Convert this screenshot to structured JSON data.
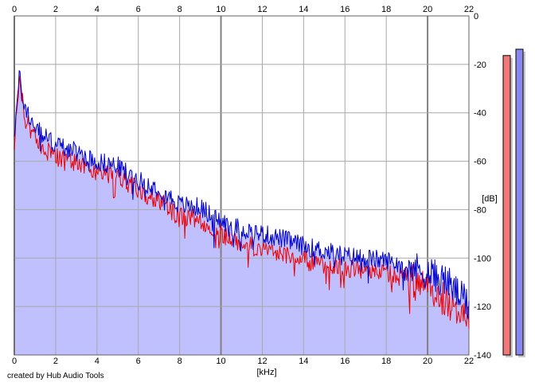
{
  "credit": "created by Hub Audio Tools",
  "chart_data": {
    "type": "area",
    "xlabel": "[kHz]",
    "ylabel": "[dB]",
    "xlim": [
      0,
      22
    ],
    "ylim": [
      -140,
      0
    ],
    "x_ticks": [
      0,
      2,
      4,
      6,
      8,
      10,
      12,
      14,
      16,
      18,
      20,
      22
    ],
    "y_ticks": [
      0,
      -20,
      -40,
      -60,
      -80,
      -100,
      -120,
      -140
    ],
    "y_tick_labels": [
      "0",
      "-20",
      "-40",
      "-60",
      "-80",
      "-100",
      "-120",
      "-140"
    ],
    "grid": true,
    "fill_color": "#c0c0ff",
    "series": [
      {
        "color": "#0000cc",
        "x": [
          0,
          0.25,
          0.5,
          1,
          1.5,
          2,
          3,
          4,
          5,
          6,
          7,
          8,
          9,
          10,
          11,
          12,
          13,
          14,
          15,
          16,
          17,
          18,
          19,
          20,
          21,
          22
        ],
        "values": [
          -48,
          -25,
          -38,
          -46,
          -50,
          -53,
          -56,
          -60,
          -62,
          -68,
          -71,
          -78,
          -79,
          -85,
          -88,
          -90,
          -92,
          -95,
          -97,
          -99,
          -100,
          -101,
          -103,
          -106,
          -110,
          -120
        ]
      },
      {
        "color": "#ee0000",
        "x": [
          0,
          0.25,
          0.5,
          1,
          1.5,
          2,
          3,
          4,
          5,
          6,
          7,
          8,
          9,
          10,
          11,
          12,
          13,
          14,
          15,
          16,
          17,
          18,
          19,
          20,
          21,
          22
        ],
        "values": [
          -52,
          -27,
          -42,
          -50,
          -55,
          -58,
          -61,
          -64,
          -66,
          -72,
          -76,
          -83,
          -84,
          -90,
          -94,
          -96,
          -98,
          -101,
          -103,
          -104,
          -105,
          -106,
          -108,
          -113,
          -118,
          -126
        ]
      }
    ]
  },
  "level_meters": [
    {
      "color": "#f07878",
      "level": 0.95
    },
    {
      "color": "#8888ee",
      "level": 0.97
    }
  ]
}
